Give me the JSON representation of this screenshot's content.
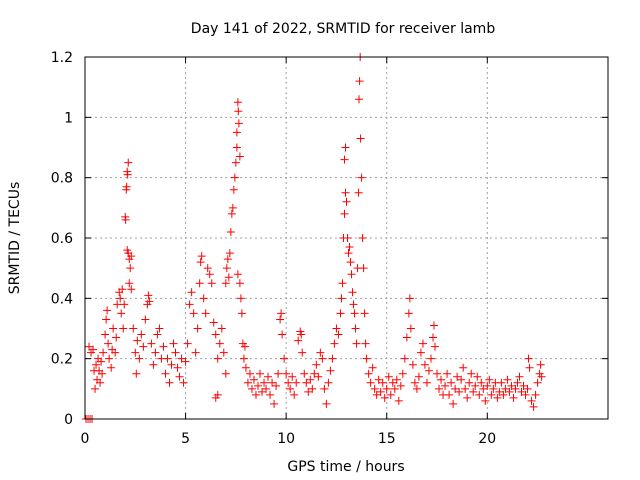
{
  "chart_data": {
    "type": "scatter",
    "title": "Day 141 of 2022, SRMTID for receiver lamb",
    "xlabel": "GPS time / hours",
    "ylabel": "SRMTID / TECUs",
    "xlim": [
      0,
      26
    ],
    "ylim": [
      0,
      1.2
    ],
    "x_ticks": [
      0,
      5,
      10,
      15,
      20
    ],
    "x_tick_labels": [
      "0",
      "5",
      "10",
      "15",
      "20"
    ],
    "y_ticks": [
      0,
      0.2,
      0.4,
      0.6,
      0.8,
      1.0,
      1.2
    ],
    "y_tick_labels": [
      "0",
      "0.2",
      "0.4",
      "0.6",
      "0.8",
      "1",
      "1.2"
    ],
    "grid": true,
    "marker": "plus",
    "color": "#ff0000",
    "series": [
      {
        "name": "SRMTID",
        "points": [
          [
            0.05,
            0.0
          ],
          [
            0.15,
            0.0
          ],
          [
            0.25,
            0.0
          ],
          [
            0.35,
            0.0
          ],
          [
            0.2,
            0.24
          ],
          [
            0.3,
            0.22
          ],
          [
            0.4,
            0.23
          ],
          [
            0.45,
            0.16
          ],
          [
            0.5,
            0.1
          ],
          [
            0.55,
            0.18
          ],
          [
            0.6,
            0.13
          ],
          [
            0.65,
            0.2
          ],
          [
            0.7,
            0.16
          ],
          [
            0.75,
            0.12
          ],
          [
            0.8,
            0.19
          ],
          [
            0.85,
            0.15
          ],
          [
            0.9,
            0.22
          ],
          [
            1.0,
            0.28
          ],
          [
            1.05,
            0.33
          ],
          [
            1.1,
            0.36
          ],
          [
            1.15,
            0.25
          ],
          [
            1.2,
            0.2
          ],
          [
            1.3,
            0.17
          ],
          [
            1.35,
            0.23
          ],
          [
            1.4,
            0.3
          ],
          [
            1.5,
            0.22
          ],
          [
            1.55,
            0.27
          ],
          [
            1.6,
            0.38
          ],
          [
            1.7,
            0.42
          ],
          [
            1.75,
            0.4
          ],
          [
            1.8,
            0.35
          ],
          [
            1.85,
            0.43
          ],
          [
            1.9,
            0.3
          ],
          [
            1.95,
            0.38
          ],
          [
            2.0,
            0.67
          ],
          [
            2.02,
            0.66
          ],
          [
            2.05,
            0.76
          ],
          [
            2.07,
            0.77
          ],
          [
            2.1,
            0.82
          ],
          [
            2.12,
            0.81
          ],
          [
            2.15,
            0.85
          ],
          [
            2.1,
            0.56
          ],
          [
            2.15,
            0.55
          ],
          [
            2.2,
            0.53
          ],
          [
            2.25,
            0.5
          ],
          [
            2.3,
            0.54
          ],
          [
            2.2,
            0.45
          ],
          [
            2.3,
            0.43
          ],
          [
            2.4,
            0.3
          ],
          [
            2.5,
            0.22
          ],
          [
            2.55,
            0.15
          ],
          [
            2.6,
            0.26
          ],
          [
            2.7,
            0.2
          ],
          [
            2.8,
            0.28
          ],
          [
            2.9,
            0.24
          ],
          [
            3.0,
            0.33
          ],
          [
            3.1,
            0.38
          ],
          [
            3.15,
            0.41
          ],
          [
            3.2,
            0.39
          ],
          [
            3.3,
            0.25
          ],
          [
            3.4,
            0.18
          ],
          [
            3.5,
            0.22
          ],
          [
            3.6,
            0.28
          ],
          [
            3.7,
            0.3
          ],
          [
            3.8,
            0.2
          ],
          [
            3.9,
            0.24
          ],
          [
            4.0,
            0.15
          ],
          [
            4.1,
            0.2
          ],
          [
            4.2,
            0.12
          ],
          [
            4.3,
            0.18
          ],
          [
            4.4,
            0.25
          ],
          [
            4.5,
            0.22
          ],
          [
            4.6,
            0.17
          ],
          [
            4.7,
            0.14
          ],
          [
            4.8,
            0.2
          ],
          [
            4.9,
            0.12
          ],
          [
            5.0,
            0.19
          ],
          [
            5.1,
            0.25
          ],
          [
            5.2,
            0.38
          ],
          [
            5.3,
            0.42
          ],
          [
            5.4,
            0.35
          ],
          [
            5.5,
            0.22
          ],
          [
            5.6,
            0.3
          ],
          [
            5.7,
            0.45
          ],
          [
            5.75,
            0.52
          ],
          [
            5.8,
            0.54
          ],
          [
            5.9,
            0.4
          ],
          [
            6.0,
            0.35
          ],
          [
            6.1,
            0.5
          ],
          [
            6.2,
            0.48
          ],
          [
            6.3,
            0.45
          ],
          [
            6.4,
            0.32
          ],
          [
            6.5,
            0.28
          ],
          [
            6.6,
            0.2
          ],
          [
            6.5,
            0.07
          ],
          [
            6.6,
            0.08
          ],
          [
            6.7,
            0.25
          ],
          [
            6.8,
            0.3
          ],
          [
            6.9,
            0.22
          ],
          [
            7.0,
            0.15
          ],
          [
            7.0,
            0.45
          ],
          [
            7.05,
            0.5
          ],
          [
            7.1,
            0.53
          ],
          [
            7.15,
            0.47
          ],
          [
            7.2,
            0.55
          ],
          [
            7.25,
            0.62
          ],
          [
            7.3,
            0.68
          ],
          [
            7.35,
            0.7
          ],
          [
            7.4,
            0.76
          ],
          [
            7.45,
            0.8
          ],
          [
            7.5,
            0.85
          ],
          [
            7.55,
            0.9
          ],
          [
            7.55,
            0.95
          ],
          [
            7.6,
            1.05
          ],
          [
            7.62,
            1.02
          ],
          [
            7.65,
            0.98
          ],
          [
            7.7,
            0.87
          ],
          [
            7.6,
            0.48
          ],
          [
            7.7,
            0.45
          ],
          [
            7.75,
            0.4
          ],
          [
            7.8,
            0.35
          ],
          [
            7.85,
            0.25
          ],
          [
            7.9,
            0.2
          ],
          [
            7.95,
            0.24
          ],
          [
            8.0,
            0.17
          ],
          [
            8.1,
            0.12
          ],
          [
            8.2,
            0.15
          ],
          [
            8.3,
            0.1
          ],
          [
            8.4,
            0.13
          ],
          [
            8.5,
            0.08
          ],
          [
            8.6,
            0.11
          ],
          [
            8.7,
            0.15
          ],
          [
            8.8,
            0.09
          ],
          [
            8.9,
            0.12
          ],
          [
            9.0,
            0.1
          ],
          [
            9.1,
            0.14
          ],
          [
            9.2,
            0.08
          ],
          [
            9.3,
            0.12
          ],
          [
            9.4,
            0.05
          ],
          [
            9.5,
            0.11
          ],
          [
            9.6,
            0.15
          ],
          [
            9.7,
            0.33
          ],
          [
            9.75,
            0.35
          ],
          [
            9.8,
            0.28
          ],
          [
            9.9,
            0.2
          ],
          [
            10.0,
            0.15
          ],
          [
            10.1,
            0.12
          ],
          [
            10.2,
            0.1
          ],
          [
            10.3,
            0.14
          ],
          [
            10.4,
            0.08
          ],
          [
            10.5,
            0.12
          ],
          [
            10.6,
            0.26
          ],
          [
            10.7,
            0.29
          ],
          [
            10.75,
            0.28
          ],
          [
            10.8,
            0.22
          ],
          [
            10.9,
            0.15
          ],
          [
            11.0,
            0.12
          ],
          [
            11.1,
            0.09
          ],
          [
            11.2,
            0.13
          ],
          [
            11.3,
            0.1
          ],
          [
            11.4,
            0.15
          ],
          [
            11.5,
            0.18
          ],
          [
            11.6,
            0.14
          ],
          [
            11.7,
            0.22
          ],
          [
            11.8,
            0.2
          ],
          [
            11.9,
            0.1
          ],
          [
            12.0,
            0.05
          ],
          [
            12.1,
            0.12
          ],
          [
            12.2,
            0.16
          ],
          [
            12.3,
            0.2
          ],
          [
            12.4,
            0.25
          ],
          [
            12.5,
            0.3
          ],
          [
            12.6,
            0.28
          ],
          [
            12.7,
            0.35
          ],
          [
            12.75,
            0.4
          ],
          [
            12.8,
            0.45
          ],
          [
            12.85,
            0.6
          ],
          [
            12.9,
            0.68
          ],
          [
            12.95,
            0.75
          ],
          [
            12.9,
            0.86
          ],
          [
            12.95,
            0.9
          ],
          [
            13.0,
            0.72
          ],
          [
            13.05,
            0.6
          ],
          [
            13.1,
            0.55
          ],
          [
            13.15,
            0.57
          ],
          [
            13.2,
            0.52
          ],
          [
            13.25,
            0.48
          ],
          [
            13.3,
            0.42
          ],
          [
            13.35,
            0.38
          ],
          [
            13.4,
            0.35
          ],
          [
            13.45,
            0.3
          ],
          [
            13.5,
            0.25
          ],
          [
            13.55,
            0.5
          ],
          [
            13.6,
            0.75
          ],
          [
            13.62,
            1.06
          ],
          [
            13.65,
            1.12
          ],
          [
            13.68,
            1.2
          ],
          [
            13.7,
            0.93
          ],
          [
            13.75,
            0.8
          ],
          [
            13.8,
            0.6
          ],
          [
            13.85,
            0.5
          ],
          [
            13.9,
            0.35
          ],
          [
            13.95,
            0.25
          ],
          [
            14.0,
            0.2
          ],
          [
            14.1,
            0.15
          ],
          [
            14.2,
            0.12
          ],
          [
            14.3,
            0.17
          ],
          [
            14.4,
            0.1
          ],
          [
            14.5,
            0.08
          ],
          [
            14.6,
            0.13
          ],
          [
            14.7,
            0.09
          ],
          [
            14.8,
            0.12
          ],
          [
            14.9,
            0.07
          ],
          [
            15.0,
            0.1
          ],
          [
            15.1,
            0.14
          ],
          [
            15.2,
            0.08
          ],
          [
            15.3,
            0.12
          ],
          [
            15.4,
            0.1
          ],
          [
            15.5,
            0.13
          ],
          [
            15.6,
            0.06
          ],
          [
            15.7,
            0.11
          ],
          [
            15.8,
            0.15
          ],
          [
            15.9,
            0.2
          ],
          [
            16.0,
            0.27
          ],
          [
            16.1,
            0.35
          ],
          [
            16.15,
            0.4
          ],
          [
            16.2,
            0.3
          ],
          [
            16.3,
            0.18
          ],
          [
            16.4,
            0.12
          ],
          [
            16.5,
            0.1
          ],
          [
            16.6,
            0.14
          ],
          [
            16.7,
            0.22
          ],
          [
            16.8,
            0.25
          ],
          [
            16.9,
            0.18
          ],
          [
            17.0,
            0.12
          ],
          [
            17.1,
            0.16
          ],
          [
            17.2,
            0.2
          ],
          [
            17.3,
            0.27
          ],
          [
            17.35,
            0.31
          ],
          [
            17.4,
            0.24
          ],
          [
            17.5,
            0.15
          ],
          [
            17.6,
            0.1
          ],
          [
            17.7,
            0.13
          ],
          [
            17.8,
            0.08
          ],
          [
            17.9,
            0.11
          ],
          [
            18.0,
            0.15
          ],
          [
            18.1,
            0.08
          ],
          [
            18.2,
            0.12
          ],
          [
            18.3,
            0.05
          ],
          [
            18.4,
            0.1
          ],
          [
            18.5,
            0.14
          ],
          [
            18.6,
            0.09
          ],
          [
            18.7,
            0.13
          ],
          [
            18.8,
            0.17
          ],
          [
            18.9,
            0.1
          ],
          [
            19.0,
            0.07
          ],
          [
            19.1,
            0.12
          ],
          [
            19.2,
            0.15
          ],
          [
            19.3,
            0.09
          ],
          [
            19.4,
            0.11
          ],
          [
            19.5,
            0.14
          ],
          [
            19.6,
            0.08
          ],
          [
            19.7,
            0.12
          ],
          [
            19.8,
            0.1
          ],
          [
            19.9,
            0.06
          ],
          [
            20.0,
            0.11
          ],
          [
            20.1,
            0.13
          ],
          [
            20.2,
            0.08
          ],
          [
            20.3,
            0.1
          ],
          [
            20.4,
            0.12
          ],
          [
            20.5,
            0.07
          ],
          [
            20.6,
            0.09
          ],
          [
            20.7,
            0.12
          ],
          [
            20.8,
            0.08
          ],
          [
            20.9,
            0.1
          ],
          [
            21.0,
            0.13
          ],
          [
            21.1,
            0.09
          ],
          [
            21.2,
            0.11
          ],
          [
            21.3,
            0.07
          ],
          [
            21.4,
            0.1
          ],
          [
            21.5,
            0.12
          ],
          [
            21.6,
            0.14
          ],
          [
            21.7,
            0.09
          ],
          [
            21.8,
            0.11
          ],
          [
            21.9,
            0.08
          ],
          [
            22.0,
            0.1
          ],
          [
            22.05,
            0.2
          ],
          [
            22.1,
            0.17
          ],
          [
            22.2,
            0.06
          ],
          [
            22.3,
            0.04
          ],
          [
            22.4,
            0.08
          ],
          [
            22.5,
            0.12
          ],
          [
            22.6,
            0.15
          ],
          [
            22.65,
            0.18
          ],
          [
            22.7,
            0.14
          ]
        ]
      }
    ]
  }
}
